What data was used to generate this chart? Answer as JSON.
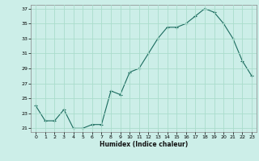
{
  "x": [
    0,
    1,
    2,
    3,
    4,
    5,
    6,
    7,
    8,
    9,
    10,
    11,
    12,
    13,
    14,
    15,
    16,
    17,
    18,
    19,
    20,
    21,
    22,
    23
  ],
  "y": [
    24.0,
    22.0,
    22.0,
    23.5,
    21.0,
    21.0,
    21.5,
    21.5,
    26.0,
    25.5,
    28.5,
    29.0,
    31.0,
    33.0,
    34.5,
    34.5,
    35.0,
    36.0,
    37.0,
    36.5,
    35.0,
    33.0,
    30.0,
    28.0
  ],
  "line_color": "#1a6b5e",
  "marker": "+",
  "marker_size": 3,
  "bg_color": "#cceee8",
  "grid_color": "#aaddcc",
  "xlabel": "Humidex (Indice chaleur)",
  "xlim": [
    -0.5,
    23.5
  ],
  "ylim": [
    20.5,
    37.5
  ],
  "yticks": [
    21,
    23,
    25,
    27,
    29,
    31,
    33,
    35,
    37
  ],
  "xticks": [
    0,
    1,
    2,
    3,
    4,
    5,
    6,
    7,
    8,
    9,
    10,
    11,
    12,
    13,
    14,
    15,
    16,
    17,
    18,
    19,
    20,
    21,
    22,
    23
  ]
}
